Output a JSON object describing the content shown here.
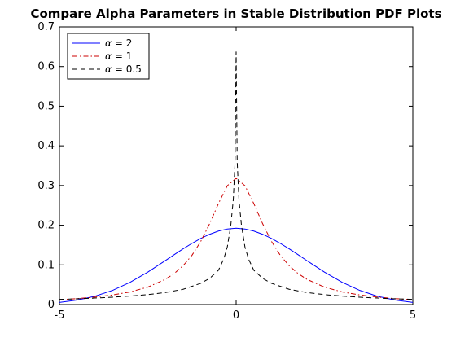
{
  "chart_data": {
    "type": "line",
    "title": "Compare Alpha Parameters in Stable Distribution PDF Plots",
    "xlabel": "",
    "ylabel": "",
    "xlim": [
      -5,
      5
    ],
    "ylim": [
      0,
      0.7
    ],
    "x_ticks": [
      -5,
      0,
      5
    ],
    "y_ticks": [
      0,
      0.1,
      0.2,
      0.3,
      0.4,
      0.5,
      0.6,
      0.7
    ],
    "x_tick_labels": [
      "-5",
      "0",
      "5"
    ],
    "y_tick_labels": [
      "0",
      "0.1",
      "0.2",
      "0.3",
      "0.4",
      "0.5",
      "0.6",
      "0.7"
    ],
    "grid": false,
    "legend_position": "top-left",
    "series": [
      {
        "name": "α = 2",
        "alpha_label": "α",
        "value_label": " = 2",
        "color": "#0000ff",
        "dash": "solid",
        "x": [
          -5.0,
          -4.5,
          -4.0,
          -3.5,
          -3.0,
          -2.5,
          -2.0,
          -1.75,
          -1.5,
          -1.25,
          -1.0,
          -0.75,
          -0.5,
          -0.25,
          0.0,
          0.25,
          0.5,
          0.75,
          1.0,
          1.25,
          1.5,
          1.75,
          2.0,
          2.5,
          3.0,
          3.5,
          4.0,
          4.5,
          5.0
        ],
        "y": [
          0.0055,
          0.0112,
          0.0208,
          0.0356,
          0.0561,
          0.0818,
          0.1109,
          0.1259,
          0.1405,
          0.1542,
          0.1666,
          0.1771,
          0.1853,
          0.1905,
          0.1924,
          0.1905,
          0.1853,
          0.1771,
          0.1666,
          0.1542,
          0.1405,
          0.1259,
          0.1109,
          0.0818,
          0.0561,
          0.0356,
          0.0208,
          0.0112,
          0.0055
        ]
      },
      {
        "name": "α = 1",
        "alpha_label": "α",
        "value_label": " = 1",
        "color": "#cc0000",
        "dash": "dashdot",
        "x": [
          -5.0,
          -4.5,
          -4.0,
          -3.5,
          -3.0,
          -2.5,
          -2.0,
          -1.75,
          -1.5,
          -1.25,
          -1.0,
          -0.75,
          -0.5,
          -0.25,
          0.0,
          0.25,
          0.5,
          0.75,
          1.0,
          1.25,
          1.5,
          1.75,
          2.0,
          2.5,
          3.0,
          3.5,
          4.0,
          4.5,
          5.0
        ],
        "y": [
          0.0122,
          0.0149,
          0.0187,
          0.0241,
          0.0318,
          0.0439,
          0.0637,
          0.0784,
          0.0979,
          0.1241,
          0.1592,
          0.2037,
          0.2546,
          0.2995,
          0.3183,
          0.2995,
          0.2546,
          0.2037,
          0.1592,
          0.1241,
          0.0979,
          0.0784,
          0.0637,
          0.0439,
          0.0318,
          0.0241,
          0.0187,
          0.0149,
          0.0122
        ]
      },
      {
        "name": "α = 0.5",
        "alpha_label": "α",
        "value_label": " = 0.5",
        "color": "#000000",
        "dash": "dashed",
        "x": [
          -5.0,
          -4.5,
          -4.0,
          -3.5,
          -3.0,
          -2.5,
          -2.0,
          -1.5,
          -1.0,
          -0.75,
          -0.5,
          -0.35,
          -0.25,
          -0.15,
          -0.08,
          -0.03,
          0.0,
          0.03,
          0.08,
          0.15,
          0.25,
          0.35,
          0.5,
          0.75,
          1.0,
          1.5,
          2.0,
          2.5,
          3.0,
          3.5,
          4.0,
          4.5,
          5.0
        ],
        "y": [
          0.013,
          0.0145,
          0.0163,
          0.0185,
          0.0213,
          0.025,
          0.0303,
          0.0385,
          0.0535,
          0.066,
          0.0865,
          0.115,
          0.145,
          0.2,
          0.265,
          0.36,
          0.637,
          0.36,
          0.265,
          0.2,
          0.145,
          0.115,
          0.0865,
          0.066,
          0.0535,
          0.0385,
          0.0303,
          0.025,
          0.0213,
          0.0185,
          0.0163,
          0.0145,
          0.013
        ]
      }
    ]
  }
}
